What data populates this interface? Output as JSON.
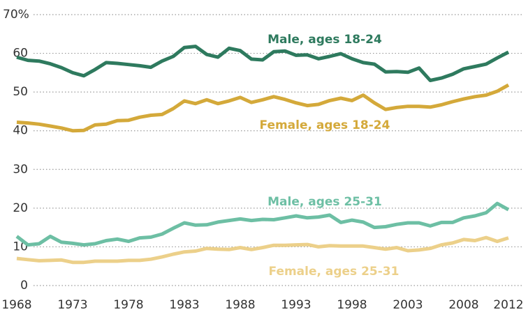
{
  "chart_data": {
    "type": "line",
    "x": [
      1968,
      1969,
      1970,
      1971,
      1972,
      1973,
      1974,
      1975,
      1976,
      1977,
      1978,
      1979,
      1980,
      1981,
      1982,
      1983,
      1984,
      1985,
      1986,
      1987,
      1988,
      1989,
      1990,
      1991,
      1992,
      1993,
      1994,
      1995,
      1996,
      1997,
      1998,
      1999,
      2000,
      2001,
      2002,
      2003,
      2004,
      2005,
      2006,
      2007,
      2008,
      2009,
      2010,
      2011,
      2012
    ],
    "series": [
      {
        "name": "Male, ages 18-24",
        "color": "#2e7a5e",
        "values": [
          59,
          58.2,
          58,
          57.3,
          56.3,
          55,
          54.2,
          55.8,
          57.6,
          57.4,
          57.1,
          56.8,
          56.4,
          58,
          59.2,
          61.5,
          61.8,
          59.7,
          59,
          61.3,
          60.7,
          58.5,
          58.3,
          60.4,
          60.6,
          59.5,
          59.6,
          58.6,
          59.2,
          59.9,
          58.6,
          57.6,
          57.2,
          55.2,
          55.3,
          55.1,
          56.2,
          53,
          53.6,
          54.6,
          56,
          56.6,
          57.2,
          58.8,
          60.3
        ]
      },
      {
        "name": "Female, ages 18-24",
        "color": "#d4a93a",
        "values": [
          42.2,
          42,
          41.7,
          41.2,
          40.7,
          40,
          40.1,
          41.5,
          41.7,
          42.6,
          42.7,
          43.5,
          44,
          44.2,
          45.7,
          47.7,
          47,
          48,
          47,
          47.7,
          48.6,
          47.3,
          48,
          48.8,
          48.1,
          47.2,
          46.5,
          46.8,
          47.8,
          48.4,
          47.8,
          49.2,
          47.2,
          45.5,
          46,
          46.3,
          46.3,
          46.1,
          46.7,
          47.5,
          48.2,
          48.8,
          49.2,
          50.2,
          51.8
        ]
      },
      {
        "name": "Male, ages 25-31",
        "color": "#6dbfa4",
        "values": [
          12.7,
          10.5,
          10.8,
          12.7,
          11.2,
          10.9,
          10.5,
          10.8,
          11.6,
          12,
          11.4,
          12.3,
          12.5,
          13.3,
          14.8,
          16.2,
          15.6,
          15.7,
          16.4,
          16.8,
          17.2,
          16.8,
          17.1,
          17,
          17.5,
          18,
          17.5,
          17.7,
          18.2,
          16.3,
          16.9,
          16.4,
          15,
          15.2,
          15.8,
          16.2,
          16.2,
          15.4,
          16.3,
          16.3,
          17.5,
          18,
          18.8,
          21.2,
          19.6
        ]
      },
      {
        "name": "Female, ages 25-31",
        "color": "#ecd08a",
        "values": [
          7,
          6.7,
          6.4,
          6.5,
          6.6,
          6,
          6,
          6.3,
          6.3,
          6.3,
          6.5,
          6.5,
          6.8,
          7.4,
          8.1,
          8.7,
          8.9,
          9.6,
          9.4,
          9.3,
          9.8,
          9.3,
          9.8,
          10.4,
          10.4,
          10.5,
          10.6,
          10,
          10.3,
          10.2,
          10.2,
          10.2,
          9.8,
          9.4,
          9.8,
          9,
          9.2,
          9.6,
          10.5,
          11,
          11.9,
          11.6,
          12.4,
          11.4,
          12.3
        ]
      }
    ],
    "xlim": [
      1968,
      2012
    ],
    "xticks": [
      1968,
      1973,
      1978,
      1983,
      1988,
      1993,
      1998,
      2003,
      2008,
      2012
    ],
    "ylim": [
      0,
      70
    ],
    "yticks": [
      0,
      10,
      20,
      30,
      40,
      50,
      {
        "value": 70,
        "label": "70%"
      },
      60
    ],
    "grid": true
  }
}
